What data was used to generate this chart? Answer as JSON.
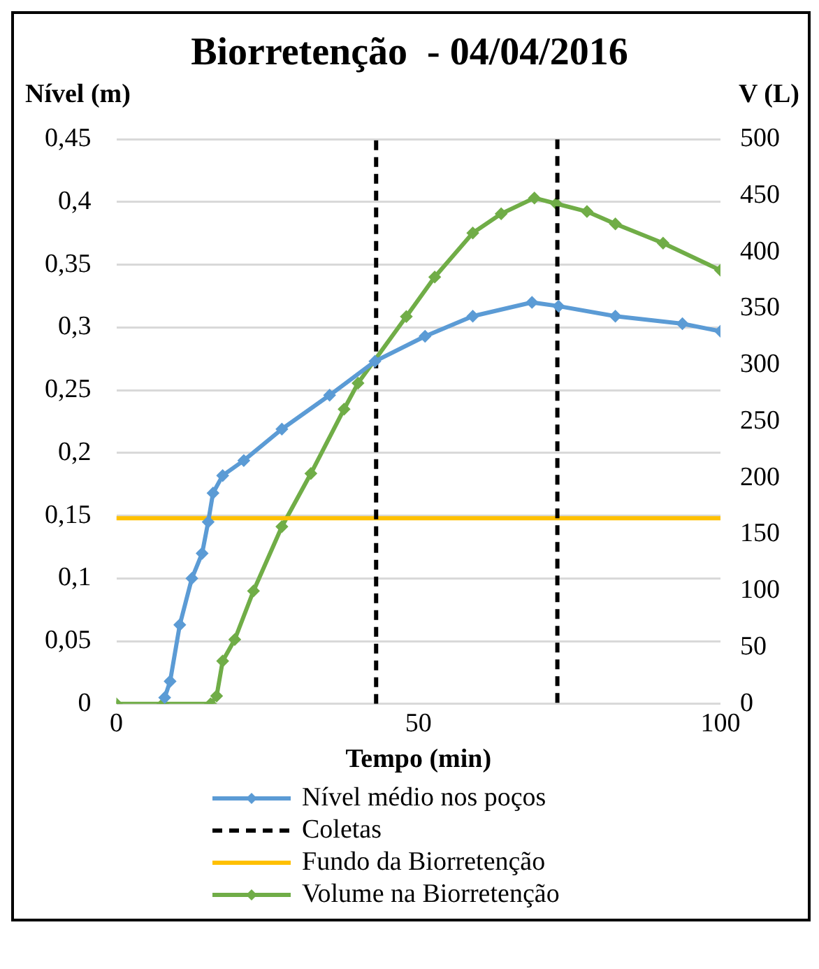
{
  "chart_data": {
    "type": "line",
    "title": "Biorretenção  - 04/04/2016",
    "xlabel": "Tempo (min)",
    "ylabel": "Nível (m)",
    "y2label": "V (L)",
    "xlim": [
      0,
      100
    ],
    "xticks": [
      0,
      50,
      100
    ],
    "ylim": [
      0,
      0.45
    ],
    "yticks": [
      0,
      {
        "value": 0.05,
        "label": "0,05"
      },
      {
        "value": 0.1,
        "label": "0,1"
      },
      {
        "value": 0.15,
        "label": "0,15"
      },
      {
        "value": 0.2,
        "label": "0,2"
      },
      {
        "value": 0.25,
        "label": "0,25"
      },
      {
        "value": 0.3,
        "label": "0,3"
      },
      {
        "value": 0.35,
        "label": "0,35"
      },
      {
        "value": 0.4,
        "label": "0,4"
      },
      {
        "value": 0.45,
        "label": "0,45"
      }
    ],
    "y2lim": [
      0,
      500
    ],
    "y2ticks": [
      0,
      50,
      100,
      150,
      200,
      250,
      300,
      350,
      400,
      450,
      500
    ],
    "grid": "y",
    "legend": "bottom",
    "marker": "diamond",
    "series": [
      {
        "name": "Nível médio nos poços",
        "color": "#5b9bd5",
        "x": [
          8,
          8.9,
          10.5,
          12.5,
          14.2,
          15.2,
          16,
          17.6,
          21.1,
          27.4,
          35.3,
          42.8,
          51.1,
          59,
          68.8,
          73.2,
          82.6,
          93.7,
          100
        ],
        "values": [
          0.005,
          0.018,
          0.063,
          0.1,
          0.12,
          0.145,
          0.168,
          0.182,
          0.194,
          0.219,
          0.246,
          0.273,
          0.293,
          0.309,
          0.32,
          0.317,
          0.309,
          0.303,
          0.297
        ]
      },
      {
        "name": "Coletas",
        "color": "#000000",
        "type": "line",
        "line_style": "dashed",
        "marker": "none",
        "x": [
          43,
          43,
          null,
          73,
          73
        ],
        "values": [
          0,
          0.45,
          null,
          0.45,
          0
        ]
      },
      {
        "name": "Fundo da Biorretenção",
        "color": "#ffc000",
        "marker": "none",
        "x": [
          0,
          100
        ],
        "values": [
          0.148,
          0.148
        ]
      },
      {
        "name": "Volume na Biorretenção",
        "color": "#70ad47",
        "axis": "y2",
        "x": [
          0,
          7.7,
          15.6,
          16.6,
          17.6,
          19.6,
          22.7,
          27.4,
          32.2,
          37.7,
          40,
          48,
          52.7,
          59,
          63.7,
          69.2,
          72.8,
          77.9,
          82.6,
          90.5,
          100
        ],
        "values": [
          0,
          0,
          0,
          7,
          38,
          57,
          100,
          157,
          204,
          261,
          284,
          343,
          378,
          417,
          434,
          448,
          443,
          436,
          425,
          408,
          384
        ]
      }
    ]
  }
}
